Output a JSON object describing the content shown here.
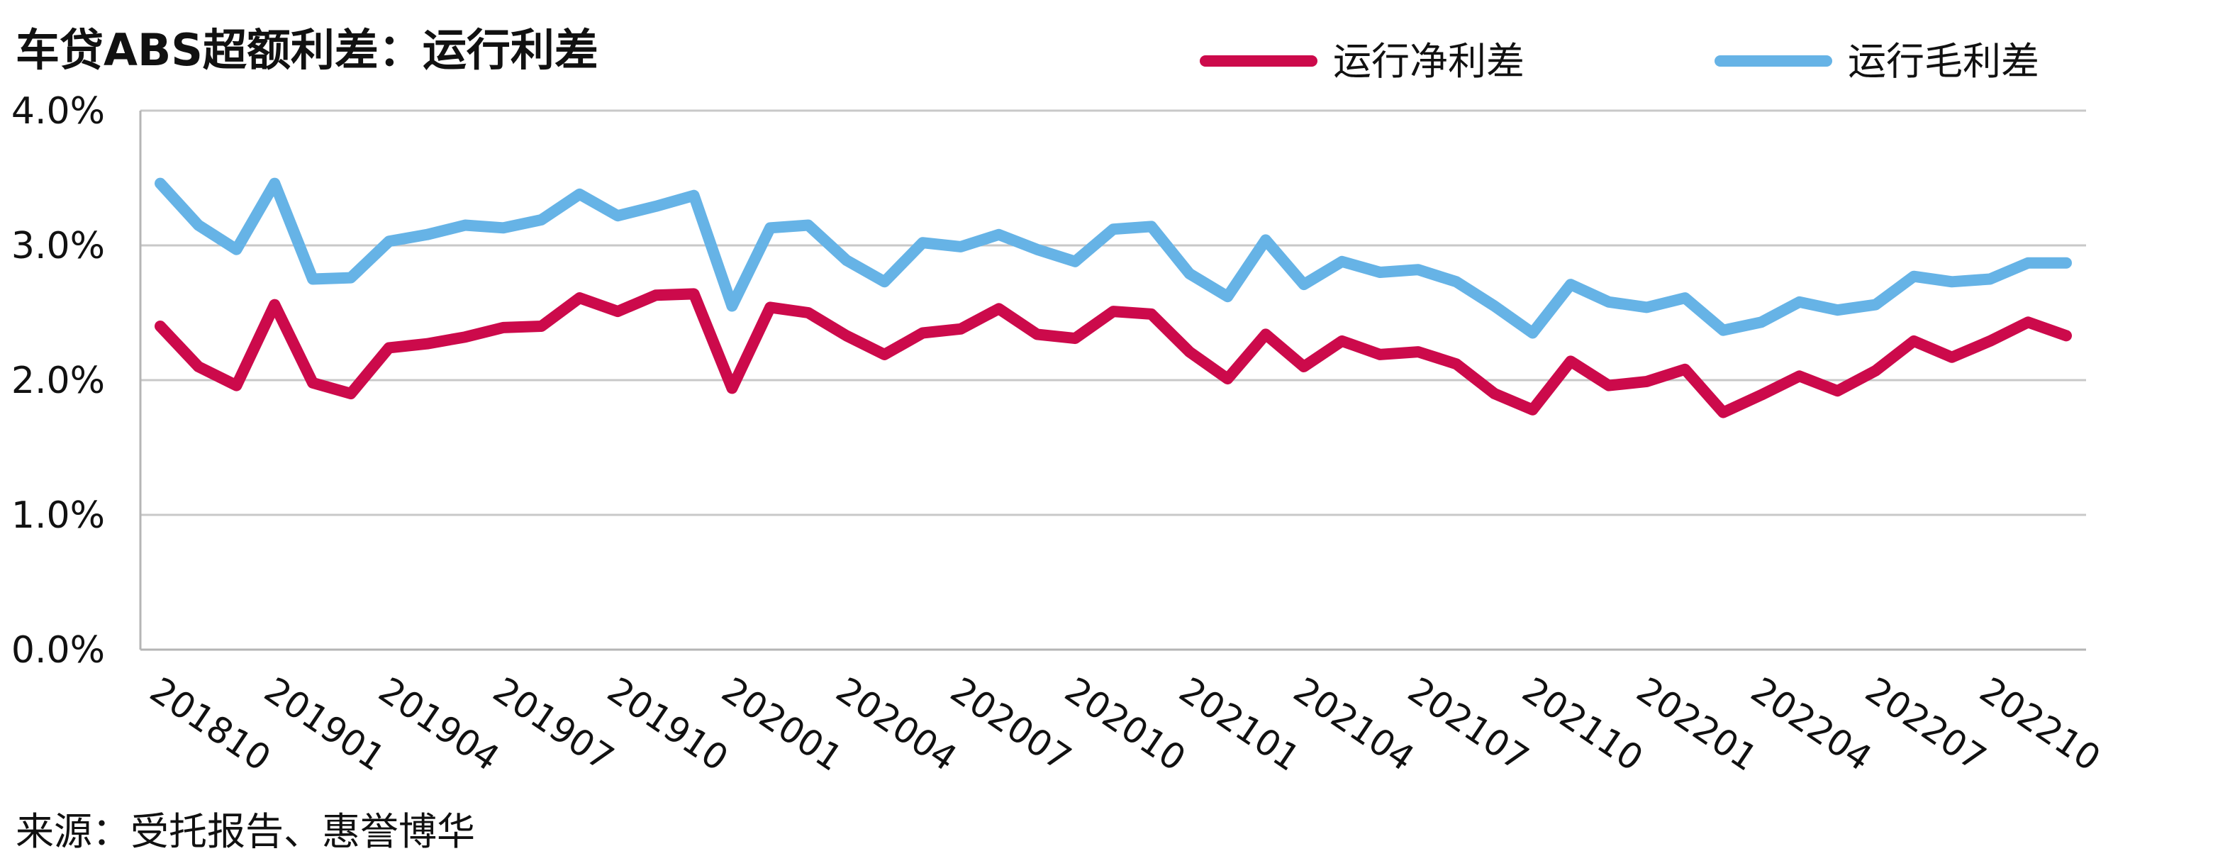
{
  "title": "车贷ABS超额利差：运行利差",
  "source": "来源：受托报告、惠誉博华",
  "chart_data": {
    "type": "line",
    "title": "车贷ABS超额利差：运行利差",
    "ylim": [
      0,
      0.04
    ],
    "y_ticks": [
      "0.0%",
      "1.0%",
      "2.0%",
      "3.0%",
      "4.0%"
    ],
    "grid": true,
    "legend_position": "top-right",
    "x_tick_labels": [
      "201810",
      "201901",
      "201904",
      "201907",
      "201910",
      "202001",
      "202004",
      "202007",
      "202010",
      "202101",
      "202104",
      "202107",
      "202110",
      "202201",
      "202204",
      "202207",
      "202210"
    ],
    "x": [
      "201810",
      "201811",
      "201812",
      "201901",
      "201902",
      "201903",
      "201904",
      "201905",
      "201906",
      "201907",
      "201908",
      "201909",
      "201910",
      "201911",
      "201912",
      "202001",
      "202002",
      "202003",
      "202004",
      "202005",
      "202006",
      "202007",
      "202008",
      "202009",
      "202010",
      "202011",
      "202012",
      "202101",
      "202102",
      "202103",
      "202104",
      "202105",
      "202106",
      "202107",
      "202108",
      "202109",
      "202110",
      "202111",
      "202112",
      "202201",
      "202202",
      "202203",
      "202204",
      "202205",
      "202206",
      "202207",
      "202208",
      "202209",
      "202210",
      "202211",
      "202212"
    ],
    "series": [
      {
        "name": "运行净利差",
        "color": "#cc0a4b",
        "values": [
          0.024,
          0.021,
          0.0196,
          0.0256,
          0.0198,
          0.019,
          0.0224,
          0.0227,
          0.0232,
          0.0239,
          0.024,
          0.0261,
          0.0251,
          0.0263,
          0.0264,
          0.0194,
          0.0254,
          0.025,
          0.0233,
          0.0219,
          0.0235,
          0.0238,
          0.0253,
          0.0234,
          0.0231,
          0.0251,
          0.0249,
          0.0221,
          0.0201,
          0.0234,
          0.021,
          0.0229,
          0.0219,
          0.0221,
          0.0212,
          0.019,
          0.0178,
          0.0214,
          0.0196,
          0.0199,
          0.0208,
          0.0176,
          0.0189,
          0.0203,
          0.0192,
          0.0207,
          0.0229,
          0.0217,
          0.0229,
          0.0243,
          0.0233
        ]
      },
      {
        "name": "运行毛利差",
        "color": "#66b3e6",
        "values": [
          0.0346,
          0.0315,
          0.0297,
          0.0346,
          0.0275,
          0.0276,
          0.0303,
          0.0308,
          0.0315,
          0.0313,
          0.0319,
          0.0338,
          0.0322,
          0.0329,
          0.0337,
          0.0255,
          0.0313,
          0.0315,
          0.0289,
          0.0273,
          0.0302,
          0.0299,
          0.0308,
          0.0297,
          0.0288,
          0.0312,
          0.0314,
          0.0279,
          0.0262,
          0.0304,
          0.0271,
          0.0288,
          0.028,
          0.0282,
          0.0273,
          0.0255,
          0.0235,
          0.0271,
          0.0258,
          0.0254,
          0.0261,
          0.0237,
          0.0243,
          0.0258,
          0.0252,
          0.0256,
          0.0277,
          0.0273,
          0.0275,
          0.0287,
          0.0287
        ]
      }
    ]
  }
}
